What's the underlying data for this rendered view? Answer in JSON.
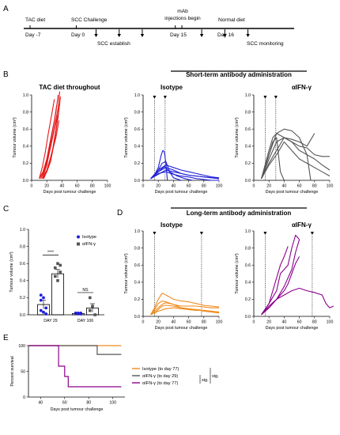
{
  "panel_letters": {
    "a": "A",
    "b": "B",
    "c": "C",
    "d": "D",
    "e": "E"
  },
  "timeline": {
    "events": [
      {
        "label": "TAC diet",
        "day": "Day -7",
        "d": -7
      },
      {
        "label": "SCC Challenge",
        "day": "Day 0",
        "d": 0
      },
      {
        "label": "mAb injections begin",
        "day": "Day 15",
        "d": 15
      },
      {
        "label": "Normal diet",
        "day": "Day 16",
        "d": 16
      }
    ],
    "mab_line1": "mAb",
    "mab_line2": "injections begin",
    "lower_labels": {
      "establish": "SCC establish",
      "monitoring": "SCC monitoring"
    },
    "establish_arrows": [
      3,
      6.5,
      10
    ],
    "monitoring_arrows": [
      19,
      22.5,
      26
    ]
  },
  "headers": {
    "short_term": "Short-term antibody administration",
    "long_term": "Long-term antibody administration"
  },
  "chart_data": [
    {
      "id": "B1",
      "type": "line",
      "title": "TAC diet throughout",
      "xlabel": "Days post tumour challenge",
      "ylabel": "Tumour volume (cm³)",
      "xlim": [
        0,
        100
      ],
      "ylim": [
        0,
        1.0
      ],
      "color": "#e31a1c",
      "x_ticks": [
        0,
        20,
        40,
        60,
        80,
        100
      ],
      "y_ticks": [
        0.0,
        0.2,
        0.4,
        0.6,
        0.8,
        1.0
      ],
      "series": [
        {
          "x": [
            10,
            14,
            18,
            22,
            26,
            30
          ],
          "y": [
            0.02,
            0.15,
            0.33,
            0.55,
            0.75,
            0.95
          ]
        },
        {
          "x": [
            10,
            15,
            20,
            25,
            30,
            33
          ],
          "y": [
            0.02,
            0.1,
            0.25,
            0.48,
            0.7,
            0.88
          ]
        },
        {
          "x": [
            12,
            17,
            22,
            27,
            32,
            35
          ],
          "y": [
            0.02,
            0.12,
            0.3,
            0.55,
            0.8,
            1.0
          ]
        },
        {
          "x": [
            12,
            18,
            24,
            30,
            35
          ],
          "y": [
            0.02,
            0.15,
            0.35,
            0.6,
            0.78
          ]
        },
        {
          "x": [
            14,
            20,
            25,
            30,
            35,
            37
          ],
          "y": [
            0.02,
            0.18,
            0.4,
            0.62,
            0.85,
            1.04
          ]
        },
        {
          "x": [
            14,
            20,
            26,
            32,
            36
          ],
          "y": [
            0.02,
            0.12,
            0.3,
            0.5,
            0.7
          ]
        },
        {
          "x": [
            15,
            20,
            25,
            30,
            35,
            38
          ],
          "y": [
            0.02,
            0.1,
            0.22,
            0.45,
            0.75,
            0.98
          ]
        },
        {
          "x": [
            16,
            22,
            28,
            33,
            37
          ],
          "y": [
            0.02,
            0.15,
            0.38,
            0.65,
            0.9
          ]
        }
      ]
    },
    {
      "id": "B2",
      "type": "line",
      "title": "Isotype",
      "xlabel": "Days post tumour challenge",
      "ylabel": "Tumour volume (cm³)",
      "xlim": [
        0,
        100
      ],
      "ylim": [
        0,
        1.0
      ],
      "color": "#1f1fd6",
      "x_ticks": [
        0,
        20,
        40,
        60,
        80,
        100
      ],
      "y_ticks": [
        0.0,
        0.2,
        0.4,
        0.6,
        0.8,
        1.0
      ],
      "vlines": [
        15,
        29
      ],
      "series": [
        {
          "x": [
            10,
            15,
            20,
            24,
            26,
            28,
            30,
            32
          ],
          "y": [
            0.02,
            0.06,
            0.15,
            0.3,
            0.35,
            0.33,
            0.2,
            0.0
          ]
        },
        {
          "x": [
            10,
            15,
            20,
            25,
            30,
            35,
            40,
            50
          ],
          "y": [
            0.02,
            0.05,
            0.12,
            0.2,
            0.22,
            0.1,
            0.03,
            0.0
          ]
        },
        {
          "x": [
            10,
            20,
            30,
            40,
            50,
            60,
            70,
            80,
            90,
            100
          ],
          "y": [
            0.02,
            0.1,
            0.15,
            0.12,
            0.08,
            0.06,
            0.05,
            0.04,
            0.03,
            0.02
          ]
        },
        {
          "x": [
            10,
            20,
            30,
            40,
            50,
            60,
            70,
            80,
            90,
            100
          ],
          "y": [
            0.02,
            0.12,
            0.18,
            0.15,
            0.12,
            0.1,
            0.08,
            0.06,
            0.04,
            0.03
          ]
        },
        {
          "x": [
            10,
            20,
            30,
            40,
            50,
            60,
            70,
            80,
            90,
            100
          ],
          "y": [
            0.02,
            0.08,
            0.1,
            0.07,
            0.05,
            0.04,
            0.02,
            0.01,
            0.0,
            0.0
          ]
        },
        {
          "x": [
            10,
            20,
            28,
            35,
            45,
            55,
            65
          ],
          "y": [
            0.02,
            0.1,
            0.16,
            0.1,
            0.05,
            0.02,
            0.0
          ]
        },
        {
          "x": [
            10,
            20,
            30,
            40,
            60,
            80,
            100
          ],
          "y": [
            0.02,
            0.07,
            0.12,
            0.1,
            0.06,
            0.04,
            0.02
          ]
        }
      ]
    },
    {
      "id": "B3",
      "type": "line",
      "title": "αIFN-γ",
      "xlabel": "Days post tumour challenge",
      "ylabel": "Tumour volume (cm³)",
      "xlim": [
        0,
        100
      ],
      "ylim": [
        0,
        1.0
      ],
      "color": "#555555",
      "x_ticks": [
        0,
        20,
        40,
        60,
        80,
        100
      ],
      "y_ticks": [
        0.0,
        0.2,
        0.4,
        0.6,
        0.8,
        1.0
      ],
      "vlines": [
        15,
        29
      ],
      "series": [
        {
          "x": [
            10,
            20,
            25,
            30,
            35,
            40
          ],
          "y": [
            0.02,
            0.3,
            0.45,
            0.5,
            0.1,
            0.0
          ]
        },
        {
          "x": [
            10,
            20,
            25,
            30,
            40,
            50,
            60,
            70,
            80,
            90,
            100
          ],
          "y": [
            0.02,
            0.35,
            0.5,
            0.55,
            0.5,
            0.45,
            0.4,
            0.38,
            0.3,
            0.28,
            0.28
          ]
        },
        {
          "x": [
            10,
            20,
            30,
            40,
            50,
            60,
            70,
            75
          ],
          "y": [
            0.02,
            0.3,
            0.55,
            0.6,
            0.58,
            0.5,
            0.3,
            0.0
          ]
        },
        {
          "x": [
            10,
            20,
            30,
            40,
            50,
            60,
            70,
            80
          ],
          "y": [
            0.02,
            0.25,
            0.45,
            0.5,
            0.48,
            0.45,
            0.4,
            0.55
          ]
        },
        {
          "x": [
            10,
            20,
            30,
            40,
            50,
            60,
            70,
            80,
            90,
            100
          ],
          "y": [
            0.02,
            0.2,
            0.35,
            0.5,
            0.45,
            0.35,
            0.3,
            0.25,
            0.18,
            0.12
          ]
        },
        {
          "x": [
            10,
            20,
            30,
            40,
            50,
            60,
            70,
            80,
            90,
            100
          ],
          "y": [
            0.02,
            0.18,
            0.3,
            0.45,
            0.35,
            0.25,
            0.2,
            0.15,
            0.1,
            0.05
          ]
        }
      ]
    },
    {
      "id": "C",
      "type": "bar",
      "categories": [
        "DAY 29",
        "DAY 106"
      ],
      "series": [
        {
          "name": "Isotype",
          "color": "#1f1fd6",
          "values": [
            0.12,
            0.015
          ],
          "err": [
            0.05,
            0.01
          ],
          "points": [
            [
              0.23,
              0.2,
              0.08,
              0.05,
              0.03,
              0.01,
              0.17
            ],
            [
              0.02,
              0.02,
              0.01,
              0.02,
              0.01,
              0.02
            ]
          ]
        },
        {
          "name": "αIFN-γ",
          "color": "#555555",
          "values": [
            0.48,
            0.08
          ],
          "err": [
            0.05,
            0.05
          ],
          "points": [
            [
              0.55,
              0.6,
              0.5,
              0.45,
              0.4,
              0.58
            ],
            [
              0.2,
              0.1,
              0.0,
              0.05
            ]
          ]
        }
      ],
      "ylabel": "Tumour volume (cm³)",
      "ylim": [
        0,
        1.0
      ],
      "y_ticks": [
        0.0,
        0.2,
        0.4,
        0.6,
        0.8,
        1.0
      ],
      "significance": [
        "****",
        "NS"
      ]
    },
    {
      "id": "D1",
      "type": "line",
      "title": "Isotype",
      "xlabel": "Days post tumour challenge",
      "ylabel": "Tumour volume (cm³)",
      "xlim": [
        0,
        100
      ],
      "ylim": [
        0,
        1.0
      ],
      "color": "#f08c1e",
      "x_ticks": [
        0,
        20,
        40,
        60,
        80,
        100
      ],
      "y_ticks": [
        0.0,
        0.2,
        0.4,
        0.6,
        0.8,
        1.0
      ],
      "vlines": [
        15,
        77
      ],
      "series": [
        {
          "x": [
            10,
            15,
            20,
            25,
            30,
            40,
            50,
            60,
            70,
            80,
            90,
            100
          ],
          "y": [
            0.02,
            0.1,
            0.2,
            0.27,
            0.25,
            0.2,
            0.18,
            0.17,
            0.15,
            0.13,
            0.12,
            0.11
          ]
        },
        {
          "x": [
            10,
            15,
            20,
            25,
            30,
            40,
            50,
            60,
            70,
            80,
            90,
            100
          ],
          "y": [
            0.02,
            0.08,
            0.15,
            0.18,
            0.17,
            0.14,
            0.12,
            0.12,
            0.12,
            0.11,
            0.1,
            0.1
          ]
        },
        {
          "x": [
            10,
            15,
            20,
            25,
            30,
            40,
            50,
            60,
            70,
            80,
            90,
            100
          ],
          "y": [
            0.02,
            0.06,
            0.1,
            0.14,
            0.16,
            0.14,
            0.1,
            0.08,
            0.08,
            0.07,
            0.06,
            0.05
          ]
        },
        {
          "x": [
            10,
            15,
            20,
            25,
            30,
            40,
            50,
            60,
            70,
            80,
            90,
            100
          ],
          "y": [
            0.02,
            0.04,
            0.08,
            0.12,
            0.13,
            0.12,
            0.1,
            0.09,
            0.08,
            0.06,
            0.05,
            0.04
          ]
        },
        {
          "x": [
            10,
            15,
            20,
            30,
            40,
            50,
            60,
            70,
            80,
            90,
            100
          ],
          "y": [
            0.02,
            0.04,
            0.06,
            0.09,
            0.1,
            0.09,
            0.08,
            0.07,
            0.07,
            0.06,
            0.05
          ]
        }
      ]
    },
    {
      "id": "D2",
      "type": "line",
      "title": "αIFN-γ",
      "xlabel": "Days post tumour challenge",
      "ylabel": "Tumour volume (cm³)",
      "xlim": [
        0,
        100
      ],
      "ylim": [
        0,
        1.0
      ],
      "color": "#8b008b",
      "x_ticks": [
        0,
        20,
        40,
        60,
        80,
        100
      ],
      "y_ticks": [
        0.0,
        0.2,
        0.4,
        0.6,
        0.8,
        1.0
      ],
      "vlines": [
        15,
        77
      ],
      "series": [
        {
          "x": [
            10,
            20,
            25,
            30,
            35,
            40,
            45
          ],
          "y": [
            0.02,
            0.15,
            0.3,
            0.45,
            0.6,
            0.7,
            0.82
          ]
        },
        {
          "x": [
            10,
            20,
            30,
            35,
            40,
            45,
            50,
            55,
            60
          ],
          "y": [
            0.02,
            0.15,
            0.3,
            0.5,
            0.55,
            0.6,
            0.8,
            0.95,
            0.9
          ]
        },
        {
          "x": [
            10,
            20,
            30,
            40,
            50,
            55,
            60
          ],
          "y": [
            0.02,
            0.1,
            0.2,
            0.35,
            0.55,
            0.75,
            0.9
          ]
        },
        {
          "x": [
            10,
            20,
            30,
            40,
            45,
            50,
            55,
            60
          ],
          "y": [
            0.02,
            0.1,
            0.2,
            0.3,
            0.38,
            0.5,
            0.62,
            0.7
          ]
        },
        {
          "x": [
            10,
            20,
            30,
            40,
            50,
            60,
            70,
            80,
            90,
            95,
            100,
            105
          ],
          "y": [
            0.02,
            0.12,
            0.2,
            0.25,
            0.3,
            0.33,
            0.3,
            0.28,
            0.25,
            0.15,
            0.1,
            0.12
          ]
        }
      ]
    },
    {
      "id": "E",
      "type": "line",
      "subtype": "survival",
      "xlabel": "Days post tumour challenge",
      "ylabel": "Percent survival",
      "xlim": [
        30,
        110
      ],
      "ylim": [
        0,
        100
      ],
      "x_ticks": [
        40,
        60,
        80,
        100
      ],
      "y_ticks": [
        0,
        50,
        100
      ],
      "series": [
        {
          "name": "Isotype (to day 77)",
          "color": "#f08c1e",
          "x": [
            30,
            107
          ],
          "y": [
            100,
            100
          ]
        },
        {
          "name": "αIFN-γ (to day 29)",
          "color": "#555555",
          "x": [
            30,
            87,
            87,
            107
          ],
          "y": [
            100,
            100,
            83,
            83
          ]
        },
        {
          "name": "αIFN-γ (to day 77)",
          "color": "#8b008b",
          "x": [
            30,
            55,
            55,
            60,
            60,
            63,
            63,
            107
          ],
          "y": [
            100,
            100,
            60,
            60,
            40,
            40,
            20,
            20
          ]
        }
      ],
      "significance": [
        "sig.",
        "sig."
      ]
    }
  ]
}
